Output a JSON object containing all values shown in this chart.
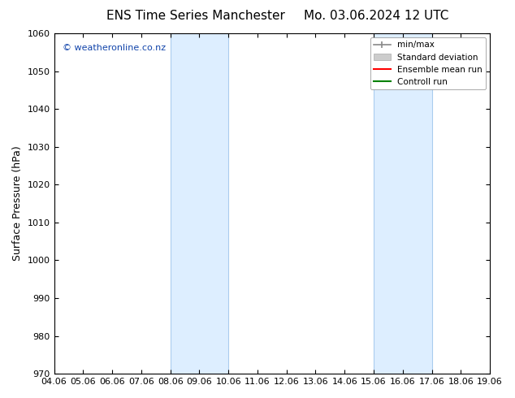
{
  "title_left": "ENS Time Series Manchester",
  "title_right": "Mo. 03.06.2024 12 UTC",
  "ylabel": "Surface Pressure (hPa)",
  "ylim": [
    970,
    1060
  ],
  "yticks": [
    970,
    980,
    990,
    1000,
    1010,
    1020,
    1030,
    1040,
    1050,
    1060
  ],
  "xlim": [
    0,
    15
  ],
  "xtick_positions": [
    0,
    1,
    2,
    3,
    4,
    5,
    6,
    7,
    8,
    9,
    10,
    11,
    12,
    13,
    14,
    15
  ],
  "xtick_labels": [
    "04.06",
    "05.06",
    "06.06",
    "07.06",
    "08.06",
    "09.06",
    "10.06",
    "11.06",
    "12.06",
    "13.06",
    "14.06",
    "15.06",
    "16.06",
    "17.06",
    "18.06",
    "19.06"
  ],
  "shaded_regions": [
    {
      "x_start": 4.0,
      "x_end": 6.0
    },
    {
      "x_start": 11.0,
      "x_end": 13.0
    }
  ],
  "shaded_color": "#ddeeff",
  "shaded_edge_color": "#aaccee",
  "watermark_text": "© weatheronline.co.nz",
  "watermark_color": "#1144aa",
  "bg_color": "#ffffff",
  "spine_color": "#000000",
  "title_fontsize": 11,
  "label_fontsize": 8,
  "ylabel_fontsize": 9,
  "watermark_fontsize": 8,
  "legend_fontsize": 7.5
}
